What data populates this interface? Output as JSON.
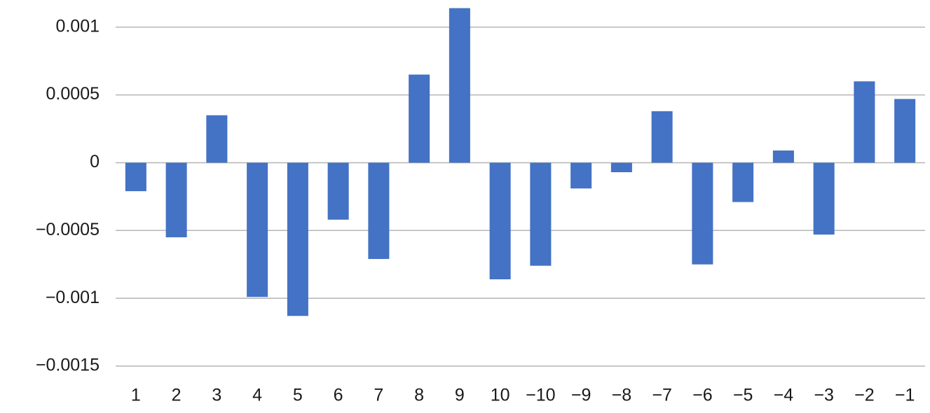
{
  "chart_data": {
    "type": "bar",
    "categories": [
      "1",
      "2",
      "3",
      "4",
      "5",
      "6",
      "7",
      "8",
      "9",
      "10",
      "−10",
      "−9",
      "−8",
      "−7",
      "−6",
      "−5",
      "−4",
      "−3",
      "−2",
      "−1"
    ],
    "values": [
      -0.00021,
      -0.00055,
      0.00035,
      -0.00099,
      -0.00113,
      -0.00042,
      -0.00071,
      0.00065,
      0.00114,
      -0.00086,
      -0.00076,
      -0.00019,
      -7e-05,
      0.00038,
      -0.00075,
      -0.00029,
      9e-05,
      -0.00053,
      0.0006,
      0.00047
    ],
    "color": "#4472c4",
    "ylim": [
      -0.0015,
      0.0012
    ],
    "yticks": [
      {
        "value": -0.0015,
        "label": "−0.0015"
      },
      {
        "value": -0.001,
        "label": "−0.001"
      },
      {
        "value": -0.0005,
        "label": "−0.0005"
      },
      0,
      0.0005,
      0.001
    ],
    "grid": true
  }
}
